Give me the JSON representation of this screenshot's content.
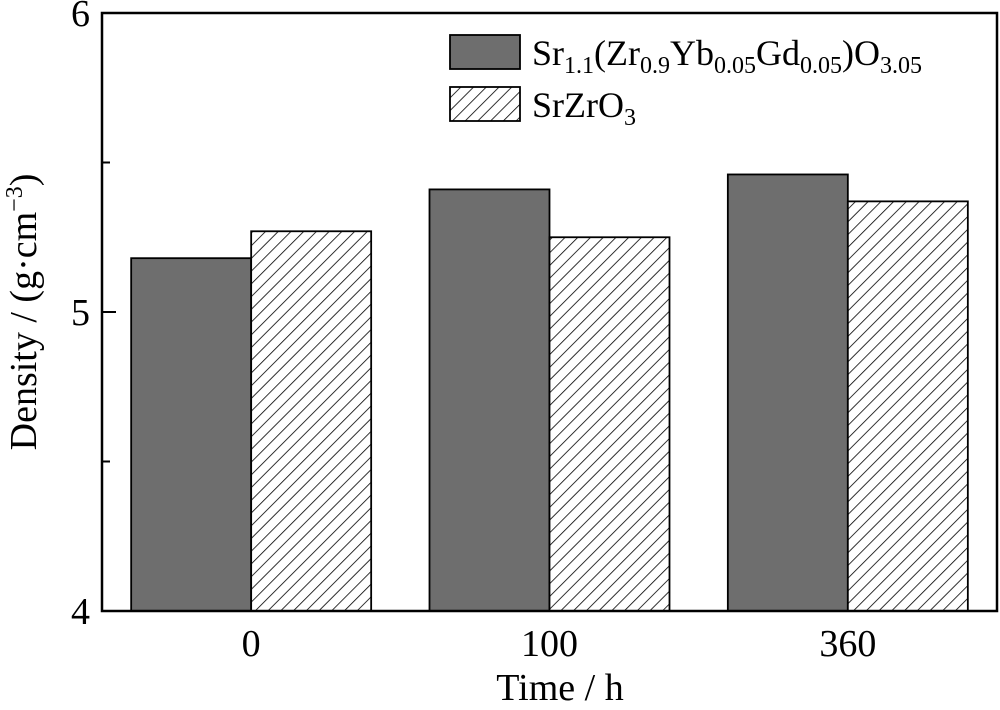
{
  "chart_data": {
    "type": "bar",
    "title": "",
    "xlabel": "Time / h",
    "ylabel": "Density / (g·cm",
    "ylabel_sup": "−3",
    "ylabel_close": ")",
    "ylim": [
      4,
      6
    ],
    "yticks": [
      "4",
      "5",
      "6"
    ],
    "categories": [
      "0",
      "100",
      "360"
    ],
    "grid": false,
    "legend_position": "top-right",
    "series": [
      {
        "name": "Sr1.1(Zr0.9Yb0.05Gd0.05)O3.05",
        "name_parts": [
          {
            "t": "Sr",
            "sub": false
          },
          {
            "t": "1.1",
            "sub": true
          },
          {
            "t": "(Zr",
            "sub": false
          },
          {
            "t": "0.9",
            "sub": true
          },
          {
            "t": "Yb",
            "sub": false
          },
          {
            "t": "0.05",
            "sub": true
          },
          {
            "t": "Gd",
            "sub": false
          },
          {
            "t": "0.05",
            "sub": true
          },
          {
            "t": ")O",
            "sub": false
          },
          {
            "t": "3.05",
            "sub": true
          }
        ],
        "fill": "solid",
        "color": "#6e6e6e",
        "values": [
          5.18,
          5.41,
          5.46
        ]
      },
      {
        "name": "SrZrO3",
        "name_parts": [
          {
            "t": "SrZrO",
            "sub": false
          },
          {
            "t": "3",
            "sub": true
          }
        ],
        "fill": "hatched",
        "color": "#ffffff",
        "values": [
          5.27,
          5.25,
          5.37
        ]
      }
    ]
  }
}
